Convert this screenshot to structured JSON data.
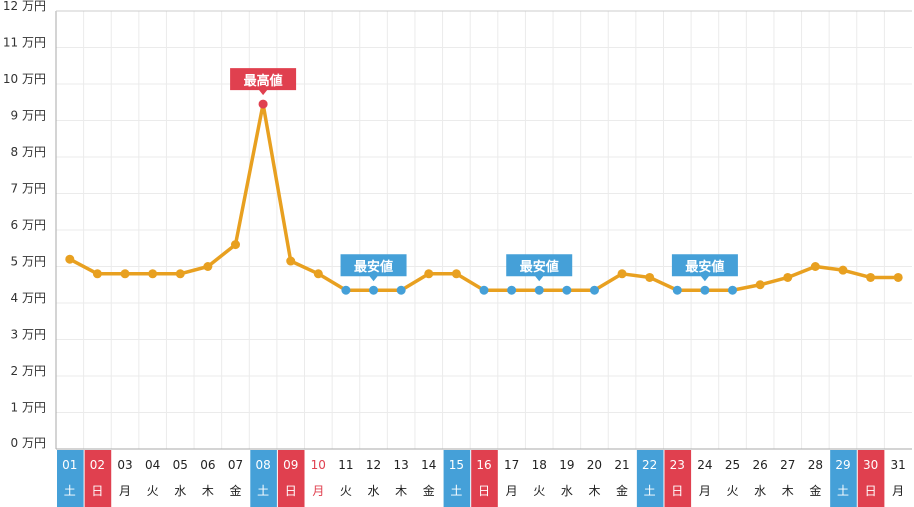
{
  "chart_data": {
    "type": "line",
    "y_unit": "万円",
    "ylim": [
      0,
      12
    ],
    "y_ticks": [
      0,
      1,
      2,
      3,
      4,
      5,
      6,
      7,
      8,
      9,
      10,
      11,
      12
    ],
    "grid": true,
    "days": [
      "01",
      "02",
      "03",
      "04",
      "05",
      "06",
      "07",
      "08",
      "09",
      "10",
      "11",
      "12",
      "13",
      "14",
      "15",
      "16",
      "17",
      "18",
      "19",
      "20",
      "21",
      "22",
      "23",
      "24",
      "25",
      "26",
      "27",
      "28",
      "29",
      "30",
      "31"
    ],
    "weekdays": [
      "土",
      "日",
      "月",
      "火",
      "水",
      "木",
      "金",
      "土",
      "日",
      "月",
      "火",
      "水",
      "木",
      "金",
      "土",
      "日",
      "月",
      "火",
      "水",
      "木",
      "金",
      "土",
      "日",
      "月",
      "火",
      "水",
      "木",
      "金",
      "土",
      "日",
      "月"
    ],
    "day_types": [
      "sat",
      "sun",
      "",
      "",
      "",
      "",
      "",
      "sat",
      "sun",
      "holiday",
      "",
      "",
      "",
      "",
      "sat",
      "sun",
      "",
      "",
      "",
      "",
      "",
      "sat",
      "sun",
      "",
      "",
      "",
      "",
      "",
      "sat",
      "sun",
      ""
    ],
    "values": [
      5.2,
      4.8,
      4.8,
      4.8,
      4.8,
      5.0,
      5.6,
      9.45,
      5.15,
      4.8,
      4.35,
      4.35,
      4.35,
      4.8,
      4.8,
      4.35,
      4.35,
      4.35,
      4.35,
      4.35,
      4.8,
      4.7,
      4.35,
      4.35,
      4.35,
      4.5,
      4.7,
      5.0,
      4.9,
      4.7,
      4.7
    ],
    "max_label": "最高値",
    "min_label": "最安値",
    "max_index": 7,
    "min_label_indices": [
      11,
      17,
      23
    ],
    "min_indices": [
      10,
      11,
      12,
      15,
      16,
      17,
      18,
      19,
      22,
      23,
      24
    ]
  },
  "colors": {
    "line": "#e8a020",
    "max": "#e0404f",
    "min": "#45a0d8",
    "saturday": "#45a0d8",
    "sunday": "#e0404f",
    "holiday_text": "#e0404f",
    "grid": "#ebebeb",
    "axis": "#aaaaaa"
  }
}
